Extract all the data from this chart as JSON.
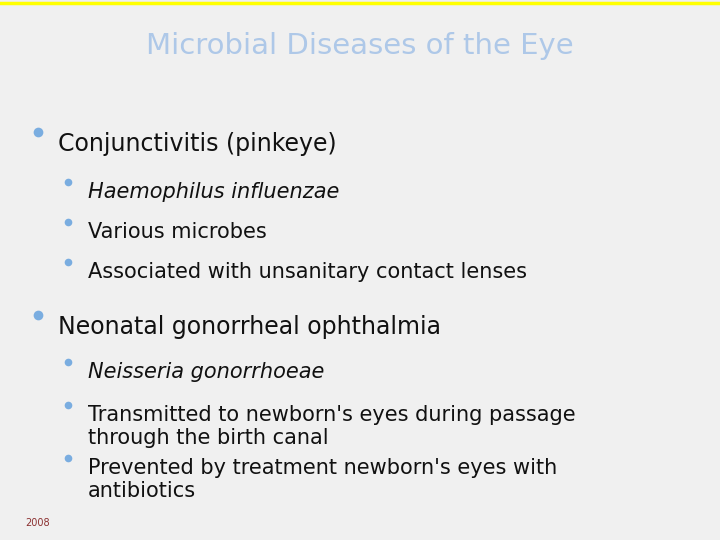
{
  "title": "Microbial Diseases of the Eye",
  "title_color": "#aec8e8",
  "title_bg_color": "#000000",
  "title_border_top_color": "#ffff00",
  "body_bg_color": "#f0f0f0",
  "content_bg_color": "#f4f4f4",
  "bullet_color": "#7aade0",
  "text_color": "#111111",
  "footer_text": "2008",
  "footer_color": "#8b3030",
  "footer_bg_color": "#111111",
  "separator_color": "#999999",
  "items": [
    {
      "level": 0,
      "text": "Conjunctivitis (pinkeye)",
      "italic": false
    },
    {
      "level": 1,
      "text": "Haemophilus influenzae",
      "italic": true
    },
    {
      "level": 1,
      "text": "Various microbes",
      "italic": false
    },
    {
      "level": 1,
      "text": "Associated with unsanitary contact lenses",
      "italic": false
    },
    {
      "level": 0,
      "text": "Neonatal gonorrheal ophthalmia",
      "italic": false
    },
    {
      "level": 1,
      "text": "Neisseria gonorrhoeae",
      "italic": true
    },
    {
      "level": 1,
      "text": "Transmitted to newborn's eyes during passage\nthrough the birth canal",
      "italic": false
    },
    {
      "level": 1,
      "text": "Prevented by treatment newborn's eyes with\nantibiotics",
      "italic": false
    }
  ]
}
